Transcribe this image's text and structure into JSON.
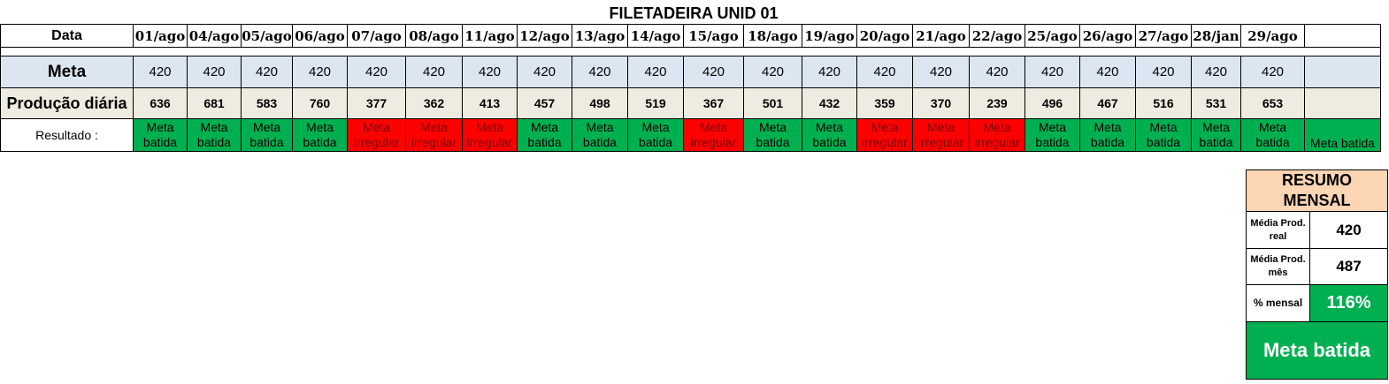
{
  "title": "FILETADEIRA UNID 01",
  "labels": {
    "data": "Data",
    "meta": "Meta",
    "producao": "Produção diária",
    "resultado": "Resultado :"
  },
  "days": [
    {
      "date": "01/ago",
      "meta": "420",
      "prod": "636",
      "res": "Meta batida",
      "status": "ok"
    },
    {
      "date": "04/ago",
      "meta": "420",
      "prod": "681",
      "res": "Meta batida",
      "status": "ok"
    },
    {
      "date": "05/ago",
      "meta": "420",
      "prod": "583",
      "res": "Meta batida",
      "status": "ok"
    },
    {
      "date": "06/ago",
      "meta": "420",
      "prod": "760",
      "res": "Meta batida",
      "status": "ok"
    },
    {
      "date": "07/ago",
      "meta": "420",
      "prod": "377",
      "res": "Meta irregular",
      "status": "bad"
    },
    {
      "date": "08/ago",
      "meta": "420",
      "prod": "362",
      "res": "Meta irregular",
      "status": "bad"
    },
    {
      "date": "11/ago",
      "meta": "420",
      "prod": "413",
      "res": "Meta irregular",
      "status": "bad"
    },
    {
      "date": "12/ago",
      "meta": "420",
      "prod": "457",
      "res": "Meta batida",
      "status": "ok"
    },
    {
      "date": "13/ago",
      "meta": "420",
      "prod": "498",
      "res": "Meta batida",
      "status": "ok"
    },
    {
      "date": "14/ago",
      "meta": "420",
      "prod": "519",
      "res": "Meta batida",
      "status": "ok"
    },
    {
      "date": "15/ago",
      "meta": "420",
      "prod": "367",
      "res": "Meta irregular",
      "status": "bad"
    },
    {
      "date": "18/ago",
      "meta": "420",
      "prod": "501",
      "res": "Meta batida",
      "status": "ok"
    },
    {
      "date": "19/ago",
      "meta": "420",
      "prod": "432",
      "res": "Meta batida",
      "status": "ok"
    },
    {
      "date": "20/ago",
      "meta": "420",
      "prod": "359",
      "res": "Meta irregular",
      "status": "bad"
    },
    {
      "date": "21/ago",
      "meta": "420",
      "prod": "370",
      "res": "Meta irregular",
      "status": "bad"
    },
    {
      "date": "22/ago",
      "meta": "420",
      "prod": "239",
      "res": "Meta irregular",
      "status": "bad"
    },
    {
      "date": "25/ago",
      "meta": "420",
      "prod": "496",
      "res": "Meta batida",
      "status": "ok"
    },
    {
      "date": "26/ago",
      "meta": "420",
      "prod": "467",
      "res": "Meta batida",
      "status": "ok"
    },
    {
      "date": "27/ago",
      "meta": "420",
      "prod": "516",
      "res": "Meta batida",
      "status": "ok"
    },
    {
      "date": "28/jan",
      "meta": "420",
      "prod": "531",
      "res": "Meta batida",
      "status": "ok"
    },
    {
      "date": "29/ago",
      "meta": "420",
      "prod": "653",
      "res": "Meta batida",
      "status": "ok"
    }
  ],
  "last_column": {
    "date": "",
    "meta": "",
    "prod": "",
    "res": "Meta batida",
    "status": "ok"
  },
  "summary": {
    "header": "RESUMO MENSAL",
    "media_real_label": "Média Prod. real",
    "media_real_value": "420",
    "media_mes_label": "Média Prod. mês",
    "media_mes_value": "487",
    "pct_label": "% mensal",
    "pct_value": "116%",
    "final_status": "Meta batida"
  },
  "colors": {
    "ok": "#00b050",
    "bad": "#ff0000",
    "meta_row": "#dce6f1",
    "prod_row": "#eeece1",
    "summary_header": "#fcd5b4"
  }
}
